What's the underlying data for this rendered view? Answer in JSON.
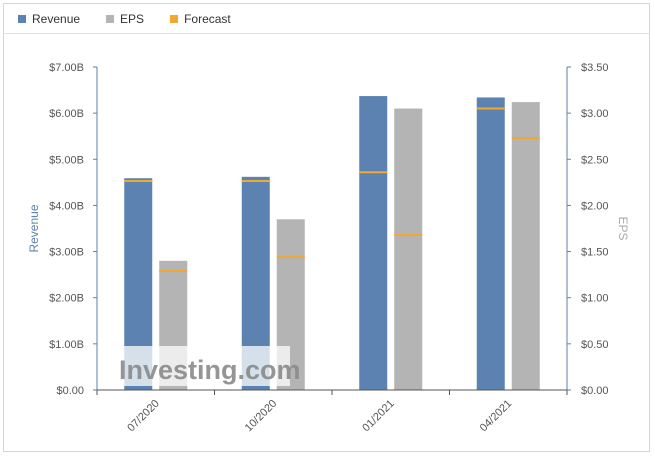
{
  "legend": {
    "revenue": "Revenue",
    "eps": "EPS",
    "forecast": "Forecast"
  },
  "colors": {
    "revenue": "#5b82b0",
    "eps": "#b4b4b4",
    "forecast": "#f0a830",
    "axis": "#5b82b0"
  },
  "watermark": "Investing.com",
  "chart_data": {
    "type": "bar",
    "categories": [
      "07/2020",
      "10/2020",
      "01/2021",
      "04/2021"
    ],
    "ylabel_left": "Revenue",
    "ylabel_right": "EPS",
    "ylim_left": [
      0,
      7
    ],
    "ylim_right": [
      0,
      3.5
    ],
    "left_ticks": [
      "$0.00",
      "$1.00B",
      "$2.00B",
      "$3.00B",
      "$4.00B",
      "$5.00B",
      "$6.00B",
      "$7.00B"
    ],
    "right_ticks": [
      "$0.00",
      "$0.50",
      "$1.00",
      "$1.50",
      "$2.00",
      "$2.50",
      "$3.00",
      "$3.50"
    ],
    "series": [
      {
        "name": "Revenue",
        "axis": "left",
        "unit": "$B",
        "values": [
          4.59,
          4.62,
          6.37,
          6.34
        ],
        "forecast": [
          4.53,
          4.53,
          4.72,
          6.1
        ]
      },
      {
        "name": "EPS",
        "axis": "right",
        "unit": "$",
        "values": [
          1.4,
          1.85,
          3.05,
          3.12
        ],
        "forecast": [
          1.29,
          1.44,
          1.68,
          2.73
        ]
      }
    ],
    "grid": false,
    "legend_position": "top-left"
  }
}
